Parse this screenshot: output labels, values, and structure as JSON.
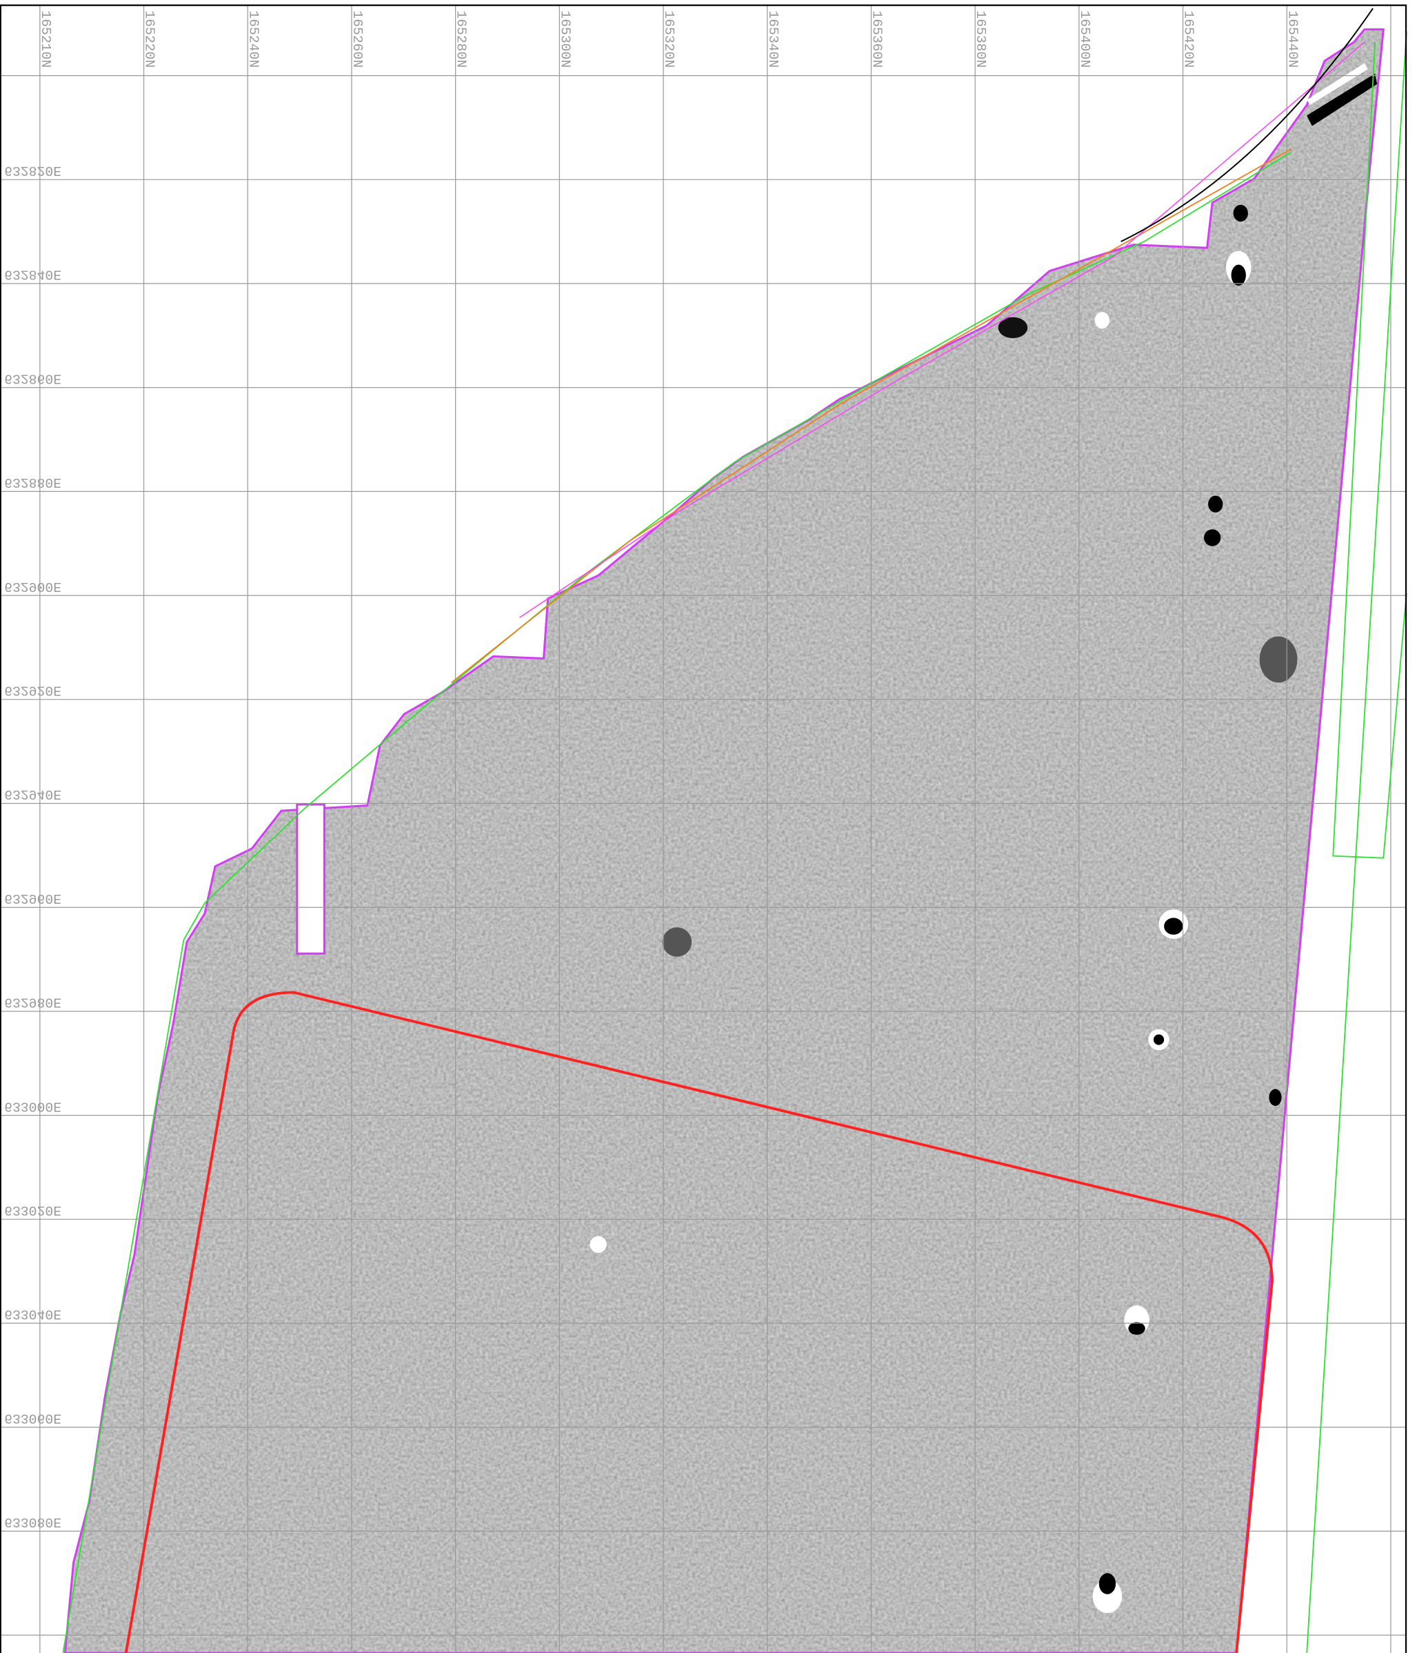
{
  "grid": {
    "northings": [
      "165210N",
      "165220N",
      "165240N",
      "165260N",
      "165280N",
      "165300N",
      "165320N",
      "165340N",
      "165360N",
      "165380N",
      "165400N",
      "165420N",
      "165440N"
    ],
    "eastings": [
      "632820E",
      "632840E",
      "632860E",
      "632880E",
      "632900E",
      "632920E",
      "632940E",
      "632960E",
      "632980E",
      "633000E",
      "633020E",
      "633040E",
      "633060E",
      "633080E"
    ]
  }
}
